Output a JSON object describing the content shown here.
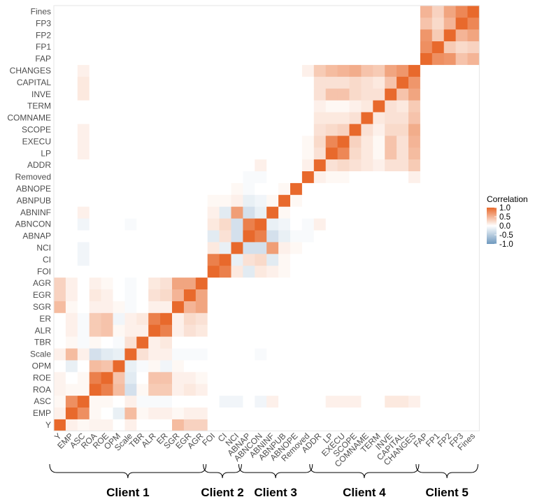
{
  "chart_data": {
    "type": "heatmap",
    "variables": [
      "Y",
      "EMP",
      "ASC",
      "ROA",
      "ROE",
      "OPM",
      "Scale",
      "TBR",
      "ALR",
      "ER",
      "SGR",
      "EGR",
      "AGR",
      "FOI",
      "CI",
      "NCI",
      "ABNAP",
      "ABNCON",
      "ABNINF",
      "ABNPUB",
      "ABNOPE",
      "Removed",
      "ADDR",
      "LP",
      "EXECU",
      "SCOPE",
      "COMNAME",
      "TERM",
      "INVE",
      "CAPITAL",
      "CHANGES",
      "FAP",
      "FP1",
      "FP2",
      "FP3",
      "Fines"
    ],
    "value_range": [
      -1,
      1
    ],
    "colors": {
      "high": "#e8692c",
      "mid": "#ffffff",
      "low": "#6f99be"
    },
    "legend": {
      "title": "Correlation",
      "ticks": [
        1.0,
        0.5,
        0.0,
        -0.5,
        -1.0
      ],
      "tick_labels": [
        "1.0",
        "0.5",
        "0.0",
        "-0.5",
        "-1.0"
      ],
      "placement": "right"
    },
    "groups": [
      {
        "label": "Client 1",
        "from": "Y",
        "to": "AGR"
      },
      {
        "label": "Client 2",
        "from": "FOI",
        "to": "NCI"
      },
      {
        "label": "Client 3",
        "from": "ABNAP",
        "to": "Removed"
      },
      {
        "label": "Client 4",
        "from": "ADDR",
        "to": "CHANGES"
      },
      {
        "label": "Client 5",
        "from": "FAP",
        "to": "Fines"
      }
    ],
    "pairs": [
      [
        "Y",
        "EMP",
        0.1
      ],
      [
        "Y",
        "ASC",
        0.05
      ],
      [
        "Y",
        "ROA",
        0.08
      ],
      [
        "Y",
        "ROE",
        0.08
      ],
      [
        "Y",
        "Scale",
        0.1
      ],
      [
        "Y",
        "SGR",
        0.45
      ],
      [
        "Y",
        "EGR",
        0.3
      ],
      [
        "Y",
        "AGR",
        0.3
      ],
      [
        "EMP",
        "ASC",
        0.75
      ],
      [
        "EMP",
        "ROA",
        0.05
      ],
      [
        "EMP",
        "OPM",
        -0.15
      ],
      [
        "EMP",
        "Scale",
        0.45
      ],
      [
        "EMP",
        "TBR",
        0.05
      ],
      [
        "EMP",
        "ALR",
        0.1
      ],
      [
        "EMP",
        "ER",
        0.1
      ],
      [
        "EMP",
        "SGR",
        0.05
      ],
      [
        "EMP",
        "EGR",
        0.1
      ],
      [
        "EMP",
        "AGR",
        0.1
      ],
      [
        "ASC",
        "ROA",
        0.05
      ],
      [
        "ASC",
        "ROE",
        0.05
      ],
      [
        "ASC",
        "Scale",
        0.1
      ],
      [
        "ASC",
        "TBR",
        -0.05
      ],
      [
        "ASC",
        "ALR",
        -0.05
      ],
      [
        "ASC",
        "ER",
        -0.05
      ],
      [
        "ASC",
        "CI",
        -0.1
      ],
      [
        "ASC",
        "NCI",
        -0.1
      ],
      [
        "ASC",
        "ABNCON",
        -0.1
      ],
      [
        "ASC",
        "ABNINF",
        0.1
      ],
      [
        "ASC",
        "LP",
        0.1
      ],
      [
        "ASC",
        "EXECU",
        0.1
      ],
      [
        "ASC",
        "SCOPE",
        0.1
      ],
      [
        "ASC",
        "INVE",
        0.15
      ],
      [
        "ASC",
        "CAPITAL",
        0.15
      ],
      [
        "ASC",
        "CHANGES",
        0.1
      ],
      [
        "ROA",
        "ROE",
        0.85
      ],
      [
        "ROA",
        "OPM",
        0.45
      ],
      [
        "ROA",
        "Scale",
        -0.3
      ],
      [
        "ROA",
        "TBR",
        0.05
      ],
      [
        "ROA",
        "ALR",
        0.35
      ],
      [
        "ROA",
        "ER",
        0.35
      ],
      [
        "ROA",
        "SGR",
        0.1
      ],
      [
        "ROA",
        "EGR",
        0.15
      ],
      [
        "ROA",
        "AGR",
        0.1
      ],
      [
        "ROE",
        "OPM",
        0.4
      ],
      [
        "ROE",
        "Scale",
        -0.2
      ],
      [
        "ROE",
        "ALR",
        0.4
      ],
      [
        "ROE",
        "ER",
        0.4
      ],
      [
        "ROE",
        "SGR",
        0.1
      ],
      [
        "ROE",
        "EGR",
        0.1
      ],
      [
        "ROE",
        "AGR",
        0.05
      ],
      [
        "OPM",
        "Scale",
        -0.15
      ],
      [
        "OPM",
        "TBR",
        -0.05
      ],
      [
        "OPM",
        "ALR",
        0.05
      ],
      [
        "OPM",
        "ER",
        -0.1
      ],
      [
        "OPM",
        "SGR",
        0.05
      ],
      [
        "Scale",
        "TBR",
        0.2
      ],
      [
        "Scale",
        "ALR",
        0.1
      ],
      [
        "Scale",
        "ER",
        0.1
      ],
      [
        "Scale",
        "SGR",
        -0.05
      ],
      [
        "Scale",
        "EGR",
        -0.05
      ],
      [
        "Scale",
        "AGR",
        -0.05
      ],
      [
        "Scale",
        "ABNCON",
        -0.05
      ],
      [
        "TBR",
        "ALR",
        0.1
      ],
      [
        "TBR",
        "ER",
        0.15
      ],
      [
        "ALR",
        "ER",
        0.85
      ],
      [
        "ALR",
        "SGR",
        0.1
      ],
      [
        "ALR",
        "EGR",
        0.2
      ],
      [
        "ALR",
        "AGR",
        0.15
      ],
      [
        "ER",
        "SGR",
        0.1
      ],
      [
        "ER",
        "EGR",
        0.25
      ],
      [
        "ER",
        "AGR",
        0.2
      ],
      [
        "SGR",
        "EGR",
        0.5
      ],
      [
        "SGR",
        "AGR",
        0.6
      ],
      [
        "EGR",
        "AGR",
        0.6
      ],
      [
        "FOI",
        "CI",
        0.85
      ],
      [
        "FOI",
        "NCI",
        0.15
      ],
      [
        "FOI",
        "ABNAP",
        -0.2
      ],
      [
        "FOI",
        "ABNCON",
        0.15
      ],
      [
        "FOI",
        "ABNINF",
        0.1
      ],
      [
        "FOI",
        "ABNPUB",
        0.05
      ],
      [
        "CI",
        "NCI",
        -0.15
      ],
      [
        "CI",
        "ABNAP",
        0.2
      ],
      [
        "CI",
        "ABNCON",
        0.25
      ],
      [
        "CI",
        "ABNINF",
        -0.2
      ],
      [
        "CI",
        "ABNPUB",
        0.05
      ],
      [
        "NCI",
        "ABNAP",
        -0.3
      ],
      [
        "NCI",
        "ABNCON",
        -0.3
      ],
      [
        "NCI",
        "ABNINF",
        0.65
      ],
      [
        "NCI",
        "ABNPUB",
        0.1
      ],
      [
        "NCI",
        "ABNOPE",
        0.05
      ],
      [
        "ABNAP",
        "ABNCON",
        0.85
      ],
      [
        "ABNAP",
        "ABNINF",
        -0.3
      ],
      [
        "ABNAP",
        "ABNPUB",
        -0.15
      ],
      [
        "ABNAP",
        "ABNOPE",
        -0.05
      ],
      [
        "ABNAP",
        "Removed",
        -0.05
      ],
      [
        "ABNCON",
        "ABNINF",
        -0.15
      ],
      [
        "ABNCON",
        "ABNPUB",
        -0.1
      ],
      [
        "ABNCON",
        "Removed",
        -0.05
      ],
      [
        "ABNCON",
        "ADDR",
        0.1
      ],
      [
        "ABNINF",
        "ABNPUB",
        0.05
      ],
      [
        "ABNPUB",
        "ABNOPE",
        0.05
      ],
      [
        "Removed",
        "ADDR",
        0.1
      ],
      [
        "Removed",
        "LP",
        0.05
      ],
      [
        "Removed",
        "EXECU",
        0.05
      ],
      [
        "Removed",
        "CHANGES",
        0.1
      ],
      [
        "ADDR",
        "LP",
        0.2
      ],
      [
        "ADDR",
        "EXECU",
        0.25
      ],
      [
        "ADDR",
        "SCOPE",
        0.2
      ],
      [
        "ADDR",
        "COMNAME",
        0.15
      ],
      [
        "ADDR",
        "TERM",
        0.1
      ],
      [
        "ADDR",
        "INVE",
        0.2
      ],
      [
        "ADDR",
        "CAPITAL",
        0.2
      ],
      [
        "ADDR",
        "CHANGES",
        0.35
      ],
      [
        "LP",
        "EXECU",
        0.8
      ],
      [
        "LP",
        "SCOPE",
        0.25
      ],
      [
        "LP",
        "COMNAME",
        0.15
      ],
      [
        "LP",
        "TERM",
        0.05
      ],
      [
        "LP",
        "INVE",
        0.4
      ],
      [
        "LP",
        "CAPITAL",
        0.2
      ],
      [
        "LP",
        "CHANGES",
        0.45
      ],
      [
        "EXECU",
        "SCOPE",
        0.3
      ],
      [
        "EXECU",
        "COMNAME",
        0.15
      ],
      [
        "EXECU",
        "TERM",
        0.05
      ],
      [
        "EXECU",
        "INVE",
        0.4
      ],
      [
        "EXECU",
        "CAPITAL",
        0.2
      ],
      [
        "EXECU",
        "CHANGES",
        0.5
      ],
      [
        "SCOPE",
        "COMNAME",
        0.2
      ],
      [
        "SCOPE",
        "TERM",
        0.1
      ],
      [
        "SCOPE",
        "INVE",
        0.25
      ],
      [
        "SCOPE",
        "CAPITAL",
        0.25
      ],
      [
        "SCOPE",
        "CHANGES",
        0.55
      ],
      [
        "COMNAME",
        "TERM",
        0.15
      ],
      [
        "COMNAME",
        "INVE",
        0.2
      ],
      [
        "COMNAME",
        "CAPITAL",
        0.2
      ],
      [
        "COMNAME",
        "CHANGES",
        0.4
      ],
      [
        "TERM",
        "INVE",
        0.2
      ],
      [
        "TERM",
        "CAPITAL",
        0.15
      ],
      [
        "TERM",
        "CHANGES",
        0.35
      ],
      [
        "INVE",
        "CAPITAL",
        0.4
      ],
      [
        "INVE",
        "CHANGES",
        0.6
      ],
      [
        "CAPITAL",
        "CHANGES",
        0.7
      ],
      [
        "FAP",
        "FP1",
        0.75
      ],
      [
        "FAP",
        "FP2",
        0.7
      ],
      [
        "FAP",
        "FP3",
        0.4
      ],
      [
        "FAP",
        "Fines",
        0.5
      ],
      [
        "FP1",
        "FP2",
        0.35
      ],
      [
        "FP1",
        "FP3",
        0.25
      ],
      [
        "FP1",
        "Fines",
        0.3
      ],
      [
        "FP2",
        "FP3",
        0.5
      ],
      [
        "FP2",
        "Fines",
        0.6
      ],
      [
        "FP3",
        "Fines",
        0.8
      ]
    ]
  }
}
